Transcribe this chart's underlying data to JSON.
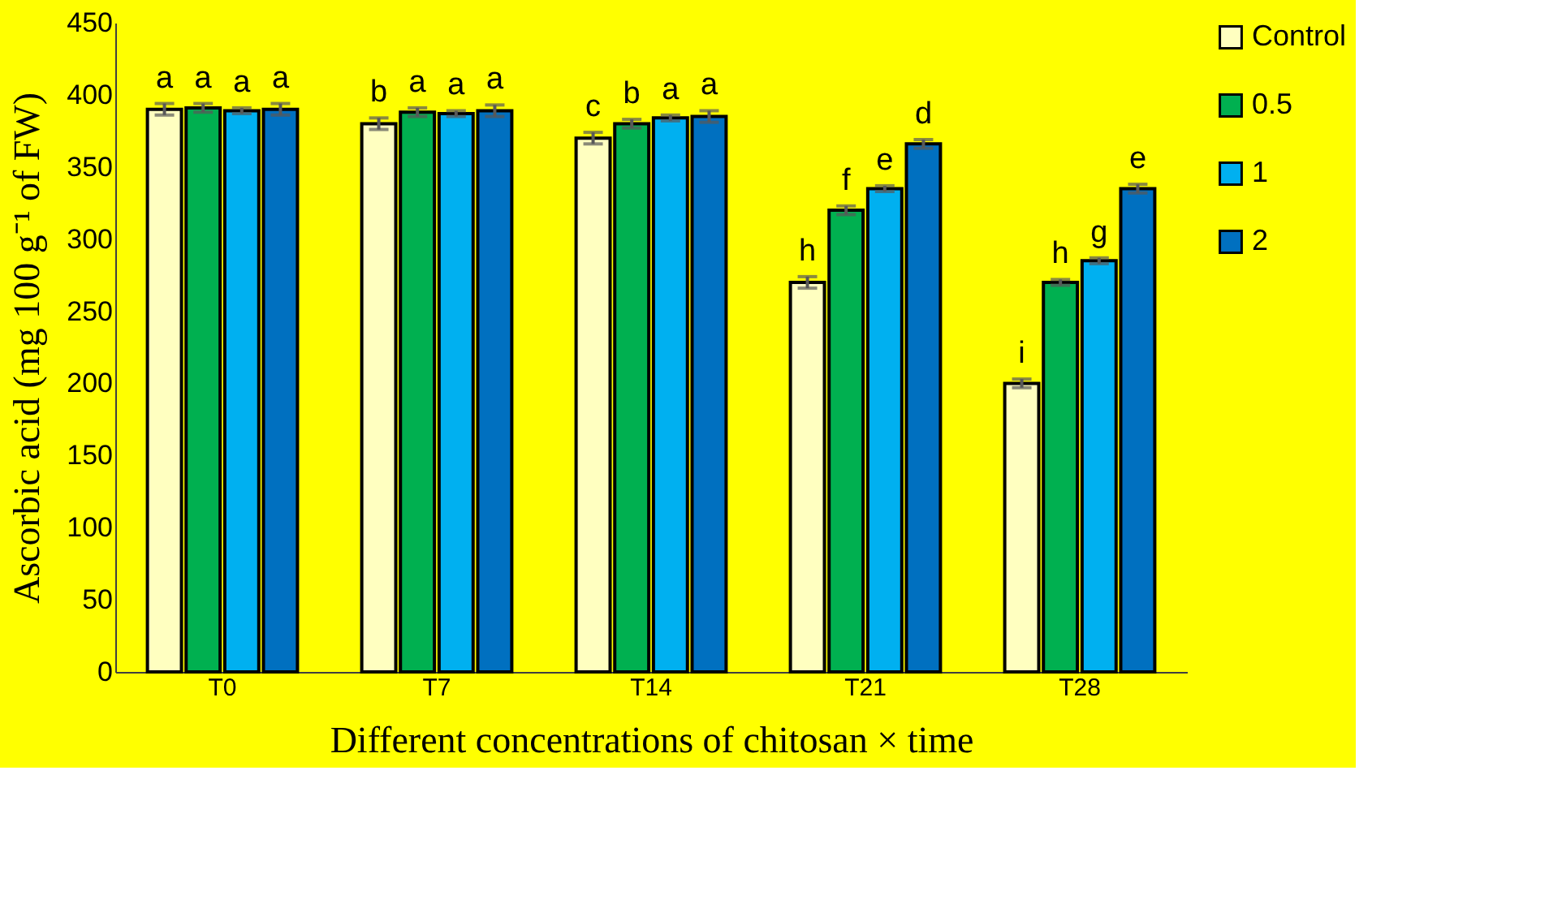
{
  "chart_data": {
    "type": "bar",
    "xlabel": "Different concentrations of chitosan × time",
    "ylabel": "Ascorbic acid (mg 100 g⁻¹ of FW)",
    "categories": [
      "T0",
      "T7",
      "T14",
      "T21",
      "T28"
    ],
    "series": [
      {
        "name": "Control",
        "color": "#ffffc0",
        "values": [
          390,
          380,
          370,
          270,
          200
        ],
        "errors": [
          4,
          4,
          4,
          4,
          3
        ],
        "value_labels": [
          "a",
          "b",
          "c",
          "h",
          "i"
        ]
      },
      {
        "name": "0.5",
        "color": "#00b050",
        "values": [
          391,
          388,
          380,
          320,
          270
        ],
        "errors": [
          3,
          3,
          3,
          3,
          2
        ],
        "value_labels": [
          "a",
          "a",
          "b",
          "f",
          "h"
        ]
      },
      {
        "name": "1",
        "color": "#00b0f0",
        "values": [
          389,
          387,
          384,
          335,
          285
        ],
        "errors": [
          2,
          2,
          2,
          2,
          2
        ],
        "value_labels": [
          "a",
          "a",
          "a",
          "e",
          "g"
        ]
      },
      {
        "name": "2",
        "color": "#0070c0",
        "values": [
          390,
          389,
          385,
          366,
          335
        ],
        "errors": [
          4,
          4,
          4,
          3,
          3
        ],
        "value_labels": [
          "a",
          "a",
          "a",
          "d",
          "e"
        ]
      }
    ],
    "ylim": [
      0,
      450
    ],
    "yticks": [
      0,
      50,
      100,
      150,
      200,
      250,
      300,
      350,
      400,
      450
    ],
    "grid": false,
    "legend": "right"
  }
}
